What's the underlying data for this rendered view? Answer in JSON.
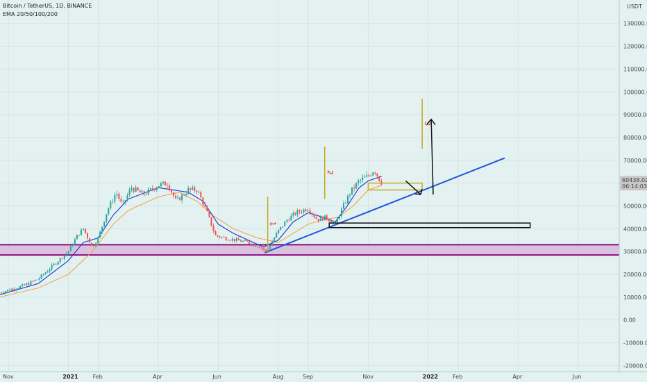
{
  "header": {
    "symbol": "Bitcoin / TetherUS, 1D, BINANCE",
    "indicator": "EMA 20/50/100/200"
  },
  "price_axis": {
    "currency": "USDT",
    "last_price": "60438.02",
    "countdown": "06:14:03"
  },
  "colors": {
    "background": "#e4f1f1",
    "bull_candle": "#26a69a",
    "bear_candle": "#ef5350",
    "ema_fast": "#2040d0",
    "ema_slow": "#f0a040",
    "trendline": "#2255dd",
    "support_zone": "#d9b9dd",
    "support_border": "#8b0a7a",
    "wave_marker": "#c9a820",
    "wave_label": "#cc2222",
    "price_tag": "#c8c8c8"
  },
  "chart_data": {
    "type": "candlestick",
    "y_ticks": [
      "130000.00",
      "120000.00",
      "110000.00",
      "100000.00",
      "90000.00",
      "80000.00",
      "70000.00",
      "60000.00",
      "50000.00",
      "40000.00",
      "30000.00",
      "20000.00",
      "10000.00",
      "0.00",
      "-10000.00",
      "-20000.00"
    ],
    "y_tick_values": [
      130000,
      120000,
      110000,
      100000,
      90000,
      80000,
      70000,
      60000,
      50000,
      40000,
      30000,
      20000,
      10000,
      0,
      -10000,
      -20000
    ],
    "ylim": [
      -22000,
      136000
    ],
    "x_ticks": [
      {
        "label": "Nov",
        "month": 0,
        "bold": false
      },
      {
        "label": "2021",
        "month": 2,
        "bold": true
      },
      {
        "label": "Feb",
        "month": 3,
        "bold": false
      },
      {
        "label": "Apr",
        "month": 5,
        "bold": false
      },
      {
        "label": "Jun",
        "month": 7,
        "bold": false
      },
      {
        "label": "Aug",
        "month": 9,
        "bold": false
      },
      {
        "label": "Sep",
        "month": 10,
        "bold": false
      },
      {
        "label": "Nov",
        "month": 12,
        "bold": false
      },
      {
        "label": "2022",
        "month": 14,
        "bold": true
      },
      {
        "label": "Feb",
        "month": 15,
        "bold": false
      },
      {
        "label": "Apr",
        "month": 17,
        "bold": false
      },
      {
        "label": "Jun",
        "month": 19,
        "bold": false
      }
    ],
    "price_path": [
      [
        -0.3,
        12000
      ],
      [
        0.5,
        15000
      ],
      [
        1.0,
        18000
      ],
      [
        1.5,
        24000
      ],
      [
        2.0,
        30000
      ],
      [
        2.3,
        37000
      ],
      [
        2.5,
        40000
      ],
      [
        2.8,
        32000
      ],
      [
        3.0,
        36000
      ],
      [
        3.3,
        48000
      ],
      [
        3.6,
        56000
      ],
      [
        3.8,
        50000
      ],
      [
        4.1,
        58000
      ],
      [
        4.5,
        55000
      ],
      [
        5.0,
        59000
      ],
      [
        5.3,
        60000
      ],
      [
        5.6,
        52000
      ],
      [
        6.0,
        57000
      ],
      [
        6.3,
        57000
      ],
      [
        6.6,
        48000
      ],
      [
        6.9,
        37000
      ],
      [
        7.2,
        36000
      ],
      [
        7.6,
        35000
      ],
      [
        8.0,
        34000
      ],
      [
        8.4,
        32000
      ],
      [
        8.6,
        30000
      ],
      [
        9.0,
        39000
      ],
      [
        9.3,
        44000
      ],
      [
        9.6,
        47000
      ],
      [
        10.0,
        49000
      ],
      [
        10.3,
        44000
      ],
      [
        10.6,
        45000
      ],
      [
        10.9,
        42000
      ],
      [
        11.1,
        48000
      ],
      [
        11.4,
        56000
      ],
      [
        11.7,
        61000
      ],
      [
        12.0,
        63000
      ],
      [
        12.2,
        66000
      ],
      [
        12.4,
        61000
      ],
      [
        12.45,
        60438
      ]
    ],
    "ema20": [
      [
        -0.3,
        11000
      ],
      [
        1.0,
        16000
      ],
      [
        2.0,
        26000
      ],
      [
        2.5,
        34000
      ],
      [
        3.0,
        36000
      ],
      [
        3.5,
        46000
      ],
      [
        4.0,
        53000
      ],
      [
        5.0,
        58000
      ],
      [
        5.5,
        57000
      ],
      [
        6.0,
        56000
      ],
      [
        6.5,
        52000
      ],
      [
        7.0,
        42000
      ],
      [
        7.5,
        38000
      ],
      [
        8.0,
        35000
      ],
      [
        8.5,
        32000
      ],
      [
        9.0,
        35000
      ],
      [
        9.5,
        43000
      ],
      [
        10.0,
        47000
      ],
      [
        10.5,
        45000
      ],
      [
        10.9,
        43000
      ],
      [
        11.3,
        50000
      ],
      [
        11.7,
        58000
      ],
      [
        12.0,
        61000
      ],
      [
        12.45,
        63000
      ]
    ],
    "ema50": [
      [
        -0.3,
        10000
      ],
      [
        1.0,
        14000
      ],
      [
        2.0,
        20000
      ],
      [
        2.8,
        30000
      ],
      [
        3.5,
        42000
      ],
      [
        4.0,
        48000
      ],
      [
        5.0,
        54000
      ],
      [
        5.7,
        56000
      ],
      [
        6.3,
        52000
      ],
      [
        6.8,
        46000
      ],
      [
        7.5,
        40000
      ],
      [
        8.3,
        36000
      ],
      [
        9.0,
        34000
      ],
      [
        9.5,
        38000
      ],
      [
        10.0,
        42000
      ],
      [
        10.5,
        44000
      ],
      [
        11.0,
        45000
      ],
      [
        11.5,
        50000
      ],
      [
        12.0,
        57000
      ],
      [
        12.45,
        59000
      ]
    ],
    "support_zone": [
      28500,
      33000
    ],
    "trendline": {
      "start": [
        8.55,
        29500
      ],
      "end": [
        16.55,
        71000
      ]
    },
    "resistance_box": {
      "start_month": 12.0,
      "end_month": 13.8,
      "low": 57000,
      "high": 60000
    },
    "demand_box": {
      "start_month": 10.7,
      "end_month": 17.4,
      "low": 40500,
      "high": 42500
    },
    "wave_markers": [
      {
        "label": "1",
        "month": 8.65,
        "low": 30000,
        "high": 54000
      },
      {
        "label": "2",
        "month": 10.55,
        "low": 53000,
        "high": 76000
      },
      {
        "label": "3",
        "month": 13.8,
        "low": 75000,
        "high": 97000
      }
    ],
    "projection": {
      "from": [
        13.25,
        61000
      ],
      "via": [
        13.75,
        55000
      ],
      "to": [
        14.1,
        88000
      ]
    }
  }
}
